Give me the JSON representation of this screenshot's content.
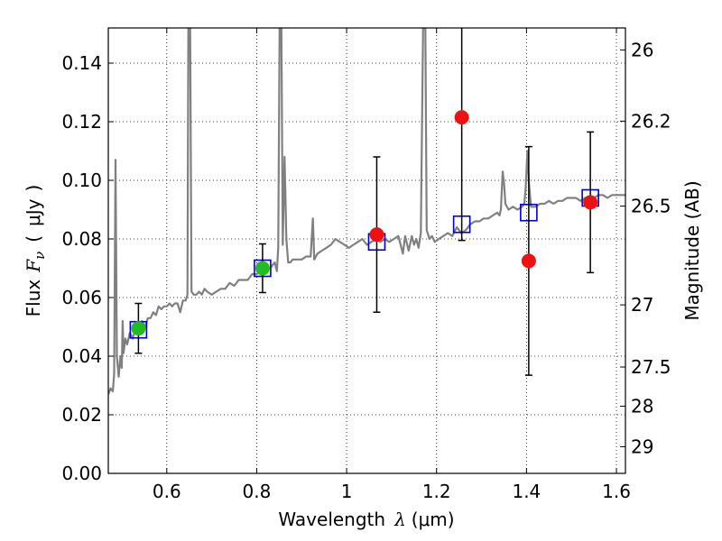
{
  "chart_data": {
    "type": "scatter",
    "xlabel": "Wavelength",
    "xlabel_symbol": "λ",
    "xlabel_unit": "(μm)",
    "ylabel": "Flux",
    "ylabel_symbol": "F",
    "ylabel_subscript": "ν",
    "ylabel_unit_open": "(",
    "ylabel_unit": "μJy",
    "ylabel_unit_close": ")",
    "y2label": "Magnitude (AB)",
    "xlim": [
      0.47,
      1.62
    ],
    "ylim": [
      0.0,
      0.152
    ],
    "x_ticks": [
      0.6,
      0.8,
      1,
      1.2,
      1.4,
      1.6
    ],
    "x_tick_labels": [
      "0.6",
      "0.8",
      "1",
      "1.2",
      "1.4",
      "1.6"
    ],
    "y_ticks": [
      0.0,
      0.02,
      0.04,
      0.06,
      0.08,
      0.1,
      0.12,
      0.14
    ],
    "y_tick_labels": [
      "0.00",
      "0.02",
      "0.04",
      "0.06",
      "0.08",
      "0.10",
      "0.12",
      "0.14"
    ],
    "y2_ticks": [
      {
        "label": "26",
        "flux": 0.1445
      },
      {
        "label": "26.2",
        "flux": 0.1202
      },
      {
        "label": "26.5",
        "flux": 0.0912
      },
      {
        "label": "27",
        "flux": 0.0575
      },
      {
        "label": "27.5",
        "flux": 0.0363
      },
      {
        "label": "28",
        "flux": 0.0229
      },
      {
        "label": "29",
        "flux": 0.0091
      }
    ],
    "grid": true,
    "model_spectrum": {
      "color": "#808080",
      "points": [
        [
          0.47,
          0.027
        ],
        [
          0.475,
          0.029
        ],
        [
          0.48,
          0.028
        ],
        [
          0.483,
          0.034
        ],
        [
          0.486,
          0.107
        ],
        [
          0.489,
          0.04
        ],
        [
          0.493,
          0.033
        ],
        [
          0.497,
          0.04
        ],
        [
          0.5,
          0.036
        ],
        [
          0.502,
          0.052
        ],
        [
          0.504,
          0.041
        ],
        [
          0.508,
          0.046
        ],
        [
          0.512,
          0.044
        ],
        [
          0.518,
          0.048
        ],
        [
          0.524,
          0.046
        ],
        [
          0.53,
          0.049
        ],
        [
          0.536,
          0.05
        ],
        [
          0.545,
          0.052
        ],
        [
          0.552,
          0.05
        ],
        [
          0.558,
          0.053
        ],
        [
          0.564,
          0.053
        ],
        [
          0.57,
          0.055
        ],
        [
          0.576,
          0.054
        ],
        [
          0.582,
          0.057
        ],
        [
          0.588,
          0.056
        ],
        [
          0.594,
          0.057
        ],
        [
          0.6,
          0.057
        ],
        [
          0.606,
          0.058
        ],
        [
          0.612,
          0.057
        ],
        [
          0.618,
          0.058
        ],
        [
          0.624,
          0.058
        ],
        [
          0.63,
          0.055
        ],
        [
          0.636,
          0.059
        ],
        [
          0.642,
          0.059
        ],
        [
          0.646,
          0.061
        ],
        [
          0.648,
          0.152
        ],
        [
          0.652,
          0.152
        ],
        [
          0.655,
          0.062
        ],
        [
          0.66,
          0.061
        ],
        [
          0.666,
          0.061
        ],
        [
          0.672,
          0.062
        ],
        [
          0.678,
          0.061
        ],
        [
          0.684,
          0.063
        ],
        [
          0.69,
          0.062
        ],
        [
          0.7,
          0.061
        ],
        [
          0.71,
          0.062
        ],
        [
          0.72,
          0.063
        ],
        [
          0.73,
          0.063
        ],
        [
          0.74,
          0.065
        ],
        [
          0.75,
          0.064
        ],
        [
          0.76,
          0.066
        ],
        [
          0.77,
          0.066
        ],
        [
          0.78,
          0.066
        ],
        [
          0.79,
          0.068
        ],
        [
          0.8,
          0.068
        ],
        [
          0.81,
          0.069
        ],
        [
          0.82,
          0.07
        ],
        [
          0.83,
          0.07
        ],
        [
          0.84,
          0.072
        ],
        [
          0.845,
          0.069
        ],
        [
          0.848,
          0.077
        ],
        [
          0.851,
          0.152
        ],
        [
          0.855,
          0.152
        ],
        [
          0.858,
          0.078
        ],
        [
          0.862,
          0.108
        ],
        [
          0.866,
          0.08
        ],
        [
          0.87,
          0.072
        ],
        [
          0.875,
          0.072
        ],
        [
          0.88,
          0.073
        ],
        [
          0.89,
          0.073
        ],
        [
          0.9,
          0.073
        ],
        [
          0.91,
          0.074
        ],
        [
          0.92,
          0.074
        ],
        [
          0.925,
          0.087
        ],
        [
          0.928,
          0.073
        ],
        [
          0.935,
          0.075
        ],
        [
          0.945,
          0.076
        ],
        [
          0.955,
          0.077
        ],
        [
          0.965,
          0.078
        ],
        [
          0.975,
          0.08
        ],
        [
          0.985,
          0.079
        ],
        [
          0.995,
          0.078
        ],
        [
          1.005,
          0.077
        ],
        [
          1.015,
          0.078
        ],
        [
          1.025,
          0.079
        ],
        [
          1.035,
          0.08
        ],
        [
          1.045,
          0.078
        ],
        [
          1.055,
          0.079
        ],
        [
          1.065,
          0.08
        ],
        [
          1.075,
          0.079
        ],
        [
          1.085,
          0.08
        ],
        [
          1.095,
          0.079
        ],
        [
          1.105,
          0.08
        ],
        [
          1.115,
          0.081
        ],
        [
          1.125,
          0.075
        ],
        [
          1.13,
          0.081
        ],
        [
          1.138,
          0.076
        ],
        [
          1.145,
          0.081
        ],
        [
          1.15,
          0.078
        ],
        [
          1.155,
          0.08
        ],
        [
          1.16,
          0.077
        ],
        [
          1.165,
          0.082
        ],
        [
          1.17,
          0.152
        ],
        [
          1.175,
          0.152
        ],
        [
          1.178,
          0.083
        ],
        [
          1.184,
          0.08
        ],
        [
          1.19,
          0.081
        ],
        [
          1.196,
          0.079
        ],
        [
          1.205,
          0.08
        ],
        [
          1.215,
          0.081
        ],
        [
          1.225,
          0.082
        ],
        [
          1.235,
          0.081
        ],
        [
          1.245,
          0.084
        ],
        [
          1.255,
          0.082
        ],
        [
          1.265,
          0.083
        ],
        [
          1.275,
          0.085
        ],
        [
          1.285,
          0.086
        ],
        [
          1.295,
          0.086
        ],
        [
          1.305,
          0.087
        ],
        [
          1.315,
          0.087
        ],
        [
          1.325,
          0.088
        ],
        [
          1.335,
          0.089
        ],
        [
          1.34,
          0.088
        ],
        [
          1.343,
          0.09
        ],
        [
          1.347,
          0.103
        ],
        [
          1.35,
          0.099
        ],
        [
          1.353,
          0.092
        ],
        [
          1.36,
          0.09
        ],
        [
          1.37,
          0.091
        ],
        [
          1.38,
          0.09
        ],
        [
          1.39,
          0.091
        ],
        [
          1.395,
          0.092
        ],
        [
          1.398,
          0.097
        ],
        [
          1.402,
          0.11
        ],
        [
          1.405,
          0.1
        ],
        [
          1.41,
          0.091
        ],
        [
          1.42,
          0.091
        ],
        [
          1.43,
          0.092
        ],
        [
          1.44,
          0.092
        ],
        [
          1.45,
          0.093
        ],
        [
          1.46,
          0.092
        ],
        [
          1.47,
          0.093
        ],
        [
          1.48,
          0.093
        ],
        [
          1.49,
          0.094
        ],
        [
          1.5,
          0.094
        ],
        [
          1.51,
          0.094
        ],
        [
          1.52,
          0.093
        ],
        [
          1.53,
          0.094
        ],
        [
          1.54,
          0.094
        ],
        [
          1.55,
          0.094
        ],
        [
          1.56,
          0.095
        ],
        [
          1.57,
          0.095
        ],
        [
          1.58,
          0.094
        ],
        [
          1.59,
          0.095
        ],
        [
          1.6,
          0.095
        ],
        [
          1.62,
          0.095
        ]
      ]
    },
    "model_photometry": {
      "color": "#0000cc",
      "points": [
        {
          "x": 0.537,
          "y": 0.049
        },
        {
          "x": 0.813,
          "y": 0.07
        },
        {
          "x": 1.067,
          "y": 0.079
        },
        {
          "x": 1.256,
          "y": 0.085
        },
        {
          "x": 1.405,
          "y": 0.089
        },
        {
          "x": 1.542,
          "y": 0.094
        }
      ]
    },
    "observed_photometry": [
      {
        "x": 0.537,
        "y": 0.0495,
        "err": 0.0085,
        "color": "#22bb22"
      },
      {
        "x": 0.813,
        "y": 0.07,
        "err": 0.0083,
        "color": "#22bb22"
      },
      {
        "x": 1.067,
        "y": 0.0815,
        "err": 0.0265,
        "color": "#ee1111"
      },
      {
        "x": 1.256,
        "y": 0.1215,
        "err": 0.042,
        "color": "#ee1111"
      },
      {
        "x": 1.405,
        "y": 0.0725,
        "err": 0.039,
        "color": "#ee1111"
      },
      {
        "x": 1.542,
        "y": 0.0925,
        "err": 0.024,
        "color": "#ee1111"
      }
    ]
  }
}
